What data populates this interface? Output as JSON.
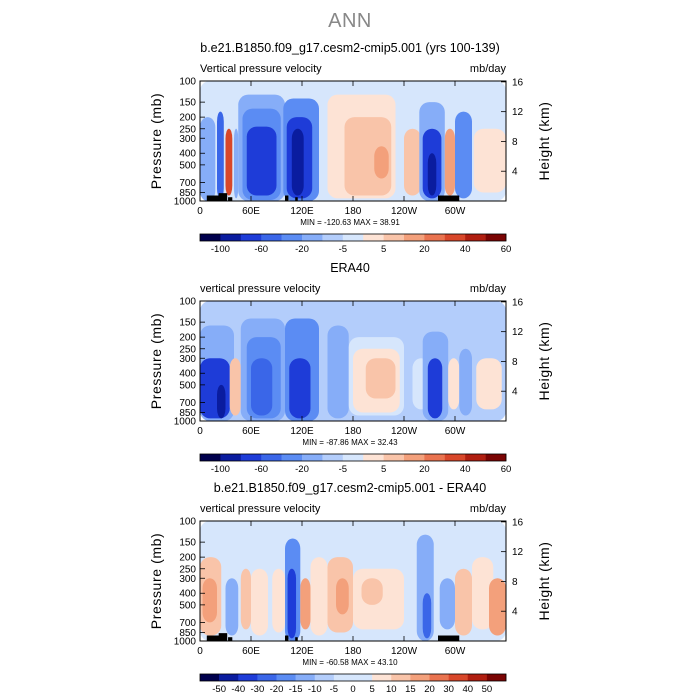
{
  "page": {
    "title": "ANN"
  },
  "colors": {
    "up_scale": [
      "#00004d",
      "#0a1c9f",
      "#1e3cd8",
      "#3a66e8",
      "#5b8cf3",
      "#86adf8",
      "#b3cdfb",
      "#d6e6fc"
    ],
    "down_scale": [
      "#fde3d5",
      "#f9c4a9",
      "#f3a07b",
      "#e9734f",
      "#d8472a",
      "#b01e10",
      "#7a0403"
    ],
    "land_mask": "#000000"
  },
  "chart_data": [
    {
      "type": "heatmap",
      "title": "b.e21.B1850.f09_g17.cesm2-cmip5.001 (yrs 100-139)",
      "left_label": "Vertical pressure velocity",
      "right_label": "mb/day",
      "xlabel": "",
      "ylabel": "Pressure (mb)",
      "y2label": "Height (km)",
      "xticks": [
        "0",
        "60E",
        "120E",
        "180",
        "120W",
        "60W"
      ],
      "yticks": [
        "100",
        "150",
        "200",
        "250",
        "300",
        "400",
        "500",
        "700",
        "850",
        "1000"
      ],
      "y2ticks": [
        "4",
        "8",
        "12",
        "16"
      ],
      "stats": "MIN = -120.63   MAX =  38.91",
      "colorbar_labels": [
        "-100",
        "-60",
        "-20",
        "-5",
        "5",
        "20",
        "40",
        "60"
      ],
      "regions": [
        {
          "x0": 0,
          "x1": 360,
          "p0": 100,
          "p1": 1000,
          "level": 7
        },
        {
          "x0": 0,
          "x1": 18,
          "p0": 200,
          "p1": 1000,
          "level": 5
        },
        {
          "x0": 20,
          "x1": 28,
          "p0": 180,
          "p1": 950,
          "level": 3
        },
        {
          "x0": 30,
          "x1": 38,
          "p0": 250,
          "p1": 900,
          "level": 12
        },
        {
          "x0": 40,
          "x1": 45,
          "p0": 250,
          "p1": 950,
          "level": 5
        },
        {
          "x0": 45,
          "x1": 100,
          "p0": 130,
          "p1": 1000,
          "level": 5
        },
        {
          "x0": 50,
          "x1": 95,
          "p0": 170,
          "p1": 980,
          "level": 4
        },
        {
          "x0": 55,
          "x1": 90,
          "p0": 240,
          "p1": 900,
          "level": 2
        },
        {
          "x0": 98,
          "x1": 140,
          "p0": 140,
          "p1": 1000,
          "level": 4
        },
        {
          "x0": 102,
          "x1": 132,
          "p0": 200,
          "p1": 950,
          "level": 2
        },
        {
          "x0": 108,
          "x1": 122,
          "p0": 250,
          "p1": 900,
          "level": 1
        },
        {
          "x0": 150,
          "x1": 230,
          "p0": 130,
          "p1": 950,
          "level": 8
        },
        {
          "x0": 170,
          "x1": 225,
          "p0": 200,
          "p1": 900,
          "level": 9
        },
        {
          "x0": 205,
          "x1": 222,
          "p0": 350,
          "p1": 650,
          "level": 10
        },
        {
          "x0": 240,
          "x1": 260,
          "p0": 250,
          "p1": 900,
          "level": 9
        },
        {
          "x0": 258,
          "x1": 288,
          "p0": 150,
          "p1": 1000,
          "level": 5
        },
        {
          "x0": 262,
          "x1": 284,
          "p0": 250,
          "p1": 950,
          "level": 2
        },
        {
          "x0": 268,
          "x1": 278,
          "p0": 400,
          "p1": 900,
          "level": 1
        },
        {
          "x0": 288,
          "x1": 300,
          "p0": 250,
          "p1": 900,
          "level": 10
        },
        {
          "x0": 300,
          "x1": 320,
          "p0": 180,
          "p1": 950,
          "level": 4
        },
        {
          "x0": 322,
          "x1": 360,
          "p0": 250,
          "p1": 850,
          "level": 8
        }
      ],
      "land": [
        {
          "x0": 8,
          "x1": 28,
          "p": 900
        },
        {
          "x0": 22,
          "x1": 32,
          "p": 860
        },
        {
          "x0": 33,
          "x1": 38,
          "p": 930
        },
        {
          "x0": 100,
          "x1": 104,
          "p": 900
        },
        {
          "x0": 112,
          "x1": 115,
          "p": 930
        },
        {
          "x0": 280,
          "x1": 305,
          "p": 900
        }
      ]
    },
    {
      "type": "heatmap",
      "title": "ERA40",
      "left_label": "vertical pressure velocity",
      "right_label": "mb/day",
      "xlabel": "",
      "ylabel": "Pressure (mb)",
      "y2label": "Height (km)",
      "xticks": [
        "0",
        "60E",
        "120E",
        "180",
        "120W",
        "60W"
      ],
      "yticks": [
        "100",
        "150",
        "200",
        "250",
        "300",
        "400",
        "500",
        "700",
        "850",
        "1000"
      ],
      "y2ticks": [
        "4",
        "8",
        "12",
        "16"
      ],
      "stats": "MIN = -87.86   MAX =  32.43",
      "colorbar_labels": [
        "-100",
        "-60",
        "-20",
        "-5",
        "5",
        "20",
        "40",
        "60"
      ],
      "regions": [
        {
          "x0": 0,
          "x1": 360,
          "p0": 100,
          "p1": 1000,
          "level": 6
        },
        {
          "x0": 0,
          "x1": 40,
          "p0": 160,
          "p1": 1000,
          "level": 5
        },
        {
          "x0": 0,
          "x1": 35,
          "p0": 300,
          "p1": 950,
          "level": 2
        },
        {
          "x0": 20,
          "x1": 30,
          "p0": 500,
          "p1": 950,
          "level": 1
        },
        {
          "x0": 35,
          "x1": 48,
          "p0": 300,
          "p1": 900,
          "level": 9
        },
        {
          "x0": 48,
          "x1": 100,
          "p0": 140,
          "p1": 1000,
          "level": 5
        },
        {
          "x0": 55,
          "x1": 95,
          "p0": 200,
          "p1": 950,
          "level": 4
        },
        {
          "x0": 60,
          "x1": 85,
          "p0": 300,
          "p1": 900,
          "level": 3
        },
        {
          "x0": 100,
          "x1": 140,
          "p0": 140,
          "p1": 1000,
          "level": 4
        },
        {
          "x0": 105,
          "x1": 130,
          "p0": 300,
          "p1": 950,
          "level": 2
        },
        {
          "x0": 150,
          "x1": 175,
          "p0": 160,
          "p1": 950,
          "level": 5
        },
        {
          "x0": 175,
          "x1": 240,
          "p0": 200,
          "p1": 900,
          "level": 7
        },
        {
          "x0": 180,
          "x1": 235,
          "p0": 250,
          "p1": 850,
          "level": 8
        },
        {
          "x0": 195,
          "x1": 230,
          "p0": 300,
          "p1": 650,
          "level": 9
        },
        {
          "x0": 250,
          "x1": 270,
          "p0": 300,
          "p1": 800,
          "level": 7
        },
        {
          "x0": 262,
          "x1": 292,
          "p0": 180,
          "p1": 1000,
          "level": 5
        },
        {
          "x0": 268,
          "x1": 285,
          "p0": 300,
          "p1": 950,
          "level": 2
        },
        {
          "x0": 292,
          "x1": 305,
          "p0": 300,
          "p1": 800,
          "level": 8
        },
        {
          "x0": 305,
          "x1": 320,
          "p0": 250,
          "p1": 900,
          "level": 5
        },
        {
          "x0": 325,
          "x1": 355,
          "p0": 300,
          "p1": 800,
          "level": 8
        }
      ],
      "land": []
    },
    {
      "type": "heatmap",
      "title": "b.e21.B1850.f09_g17.cesm2-cmip5.001 - ERA40",
      "left_label": "vertical pressure velocity",
      "right_label": "mb/day",
      "xlabel": "",
      "ylabel": "Pressure (mb)",
      "y2label": "Height (km)",
      "xticks": [
        "0",
        "60E",
        "120E",
        "180",
        "120W",
        "60W"
      ],
      "yticks": [
        "100",
        "150",
        "200",
        "250",
        "300",
        "400",
        "500",
        "700",
        "850",
        "1000"
      ],
      "y2ticks": [
        "4",
        "8",
        "12",
        "16"
      ],
      "stats": "MIN = -60.58   MAX =  43.10",
      "colorbar_labels": [
        "-50",
        "-40",
        "-30",
        "-20",
        "-15",
        "-10",
        "-5",
        "0",
        "5",
        "10",
        "15",
        "20",
        "30",
        "40",
        "50"
      ],
      "regions": [
        {
          "x0": 0,
          "x1": 360,
          "p0": 100,
          "p1": 1000,
          "level": 7
        },
        {
          "x0": 0,
          "x1": 25,
          "p0": 200,
          "p1": 900,
          "level": 9
        },
        {
          "x0": 3,
          "x1": 20,
          "p0": 300,
          "p1": 700,
          "level": 10
        },
        {
          "x0": 30,
          "x1": 45,
          "p0": 300,
          "p1": 900,
          "level": 5
        },
        {
          "x0": 48,
          "x1": 60,
          "p0": 250,
          "p1": 800,
          "level": 9
        },
        {
          "x0": 60,
          "x1": 80,
          "p0": 250,
          "p1": 900,
          "level": 8
        },
        {
          "x0": 85,
          "x1": 100,
          "p0": 250,
          "p1": 850,
          "level": 8
        },
        {
          "x0": 100,
          "x1": 118,
          "p0": 140,
          "p1": 1000,
          "level": 4
        },
        {
          "x0": 103,
          "x1": 113,
          "p0": 250,
          "p1": 950,
          "level": 2
        },
        {
          "x0": 118,
          "x1": 130,
          "p0": 300,
          "p1": 800,
          "level": 10
        },
        {
          "x0": 130,
          "x1": 150,
          "p0": 200,
          "p1": 900,
          "level": 8
        },
        {
          "x0": 150,
          "x1": 180,
          "p0": 200,
          "p1": 850,
          "level": 9
        },
        {
          "x0": 160,
          "x1": 175,
          "p0": 300,
          "p1": 600,
          "level": 10
        },
        {
          "x0": 180,
          "x1": 240,
          "p0": 250,
          "p1": 800,
          "level": 8
        },
        {
          "x0": 190,
          "x1": 215,
          "p0": 300,
          "p1": 500,
          "level": 9
        },
        {
          "x0": 255,
          "x1": 275,
          "p0": 130,
          "p1": 1000,
          "level": 5
        },
        {
          "x0": 262,
          "x1": 272,
          "p0": 400,
          "p1": 950,
          "level": 3
        },
        {
          "x0": 282,
          "x1": 300,
          "p0": 300,
          "p1": 800,
          "level": 5
        },
        {
          "x0": 300,
          "x1": 320,
          "p0": 250,
          "p1": 900,
          "level": 9
        },
        {
          "x0": 320,
          "x1": 345,
          "p0": 200,
          "p1": 800,
          "level": 8
        },
        {
          "x0": 340,
          "x1": 360,
          "p0": 300,
          "p1": 900,
          "level": 10
        }
      ],
      "land": [
        {
          "x0": 8,
          "x1": 28,
          "p": 900
        },
        {
          "x0": 22,
          "x1": 32,
          "p": 860
        },
        {
          "x0": 33,
          "x1": 38,
          "p": 930
        },
        {
          "x0": 100,
          "x1": 104,
          "p": 900
        },
        {
          "x0": 112,
          "x1": 115,
          "p": 930
        },
        {
          "x0": 280,
          "x1": 305,
          "p": 900
        }
      ]
    }
  ]
}
